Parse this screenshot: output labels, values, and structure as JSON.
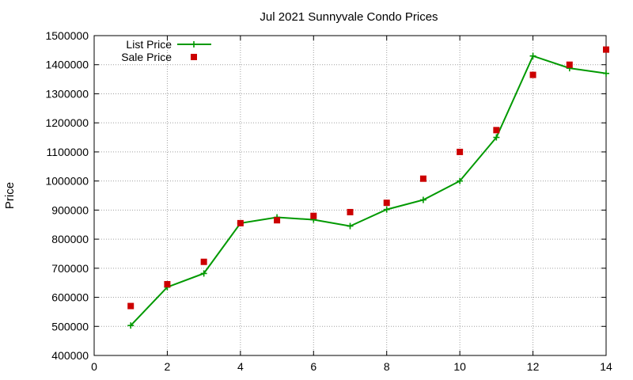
{
  "chart_data": {
    "type": "line",
    "title": "Jul 2021 Sunnyvale Condo Prices",
    "xlabel": "",
    "ylabel": "Price",
    "xlim": [
      0,
      14
    ],
    "ylim": [
      400000,
      1500000
    ],
    "xticks": [
      0,
      2,
      4,
      6,
      8,
      10,
      12,
      14
    ],
    "yticks": [
      400000,
      500000,
      600000,
      700000,
      800000,
      900000,
      1000000,
      1100000,
      1200000,
      1300000,
      1400000,
      1500000
    ],
    "grid": true,
    "legend_position": "top-left",
    "series": [
      {
        "name": "List Price",
        "style": "line-points",
        "color": "#009900",
        "x": [
          1,
          2,
          3,
          4,
          5,
          6,
          7,
          8,
          9,
          10,
          11,
          12,
          13,
          14
        ],
        "y": [
          503000,
          635000,
          682000,
          855000,
          875000,
          867000,
          845000,
          902000,
          935000,
          1000000,
          1150000,
          1430000,
          1388000,
          1370000
        ]
      },
      {
        "name": "Sale Price",
        "style": "points",
        "color": "#cc0000",
        "x": [
          1,
          2,
          3,
          4,
          5,
          6,
          7,
          8,
          9,
          10,
          11,
          12,
          13,
          14
        ],
        "y": [
          570000,
          645000,
          722000,
          855000,
          865000,
          880000,
          893000,
          925000,
          1008000,
          1100000,
          1175000,
          1365000,
          1400000,
          1452000
        ]
      }
    ]
  }
}
